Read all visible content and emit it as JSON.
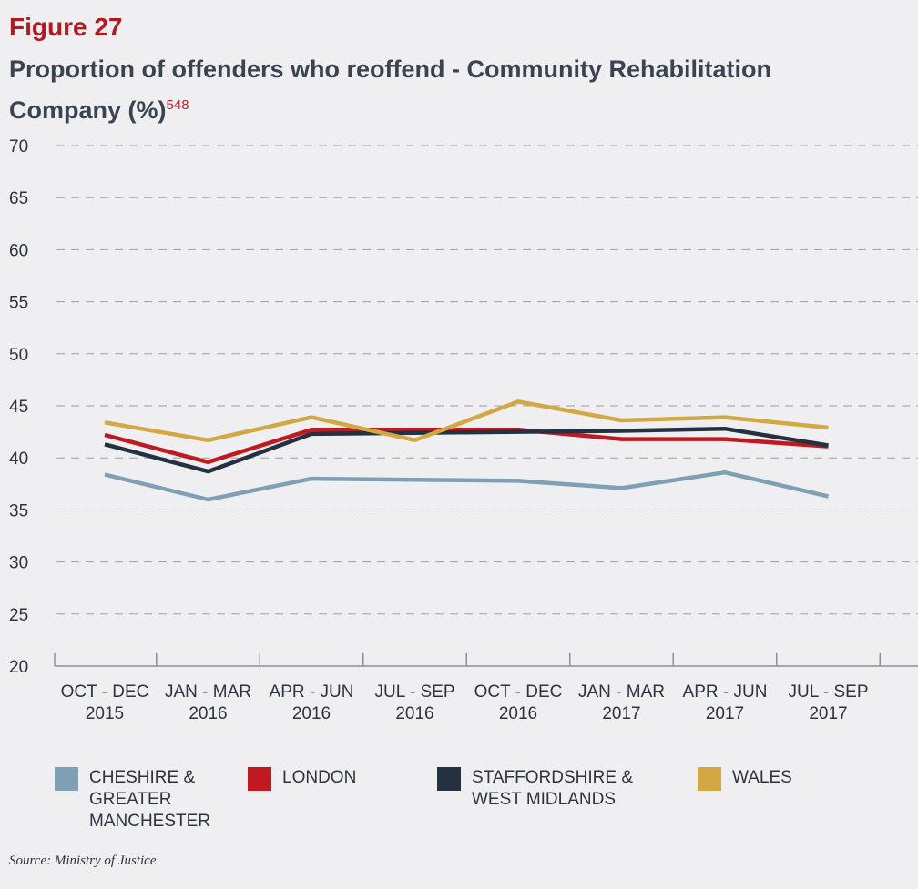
{
  "figure_label": "Figure 27",
  "title": "Proportion of offenders who reoffend - Community Rehabilitation Company (%)",
  "footnote": "548",
  "source": "Source: Ministry of Justice",
  "chart_data": {
    "type": "line",
    "title": "Proportion of offenders who reoffend - Community Rehabilitation Company (%)",
    "xlabel": "",
    "ylabel": "",
    "ylim": [
      20,
      70
    ],
    "yticks": [
      20,
      25,
      30,
      35,
      40,
      45,
      50,
      55,
      60,
      65,
      70
    ],
    "grid": true,
    "legend_position": "bottom",
    "categories": [
      [
        "OCT - DEC",
        "2015"
      ],
      [
        "JAN - MAR",
        "2016"
      ],
      [
        "APR - JUN",
        "2016"
      ],
      [
        "JUL - SEP",
        "2016"
      ],
      [
        "OCT - DEC",
        "2016"
      ],
      [
        "JAN - MAR",
        "2017"
      ],
      [
        "APR - JUN",
        "2017"
      ],
      [
        "JUL - SEP",
        "2017"
      ]
    ],
    "series": [
      {
        "name": "CHESHIRE & GREATER MANCHESTER",
        "color": "#7f9fb2",
        "values": [
          38.4,
          36.0,
          38.0,
          37.9,
          37.8,
          37.1,
          38.6,
          36.3
        ]
      },
      {
        "name": "LONDON",
        "color": "#c0191f",
        "values": [
          42.2,
          39.6,
          42.7,
          42.7,
          42.7,
          41.8,
          41.8,
          41.1
        ]
      },
      {
        "name": "STAFFORDSHIRE & WEST MIDLANDS",
        "color": "#233140",
        "values": [
          41.3,
          38.7,
          42.3,
          42.4,
          42.5,
          42.6,
          42.8,
          41.2
        ]
      },
      {
        "name": "WALES",
        "color": "#d3a842",
        "values": [
          43.4,
          41.7,
          43.9,
          41.7,
          45.4,
          43.6,
          43.9,
          42.9
        ]
      }
    ]
  }
}
